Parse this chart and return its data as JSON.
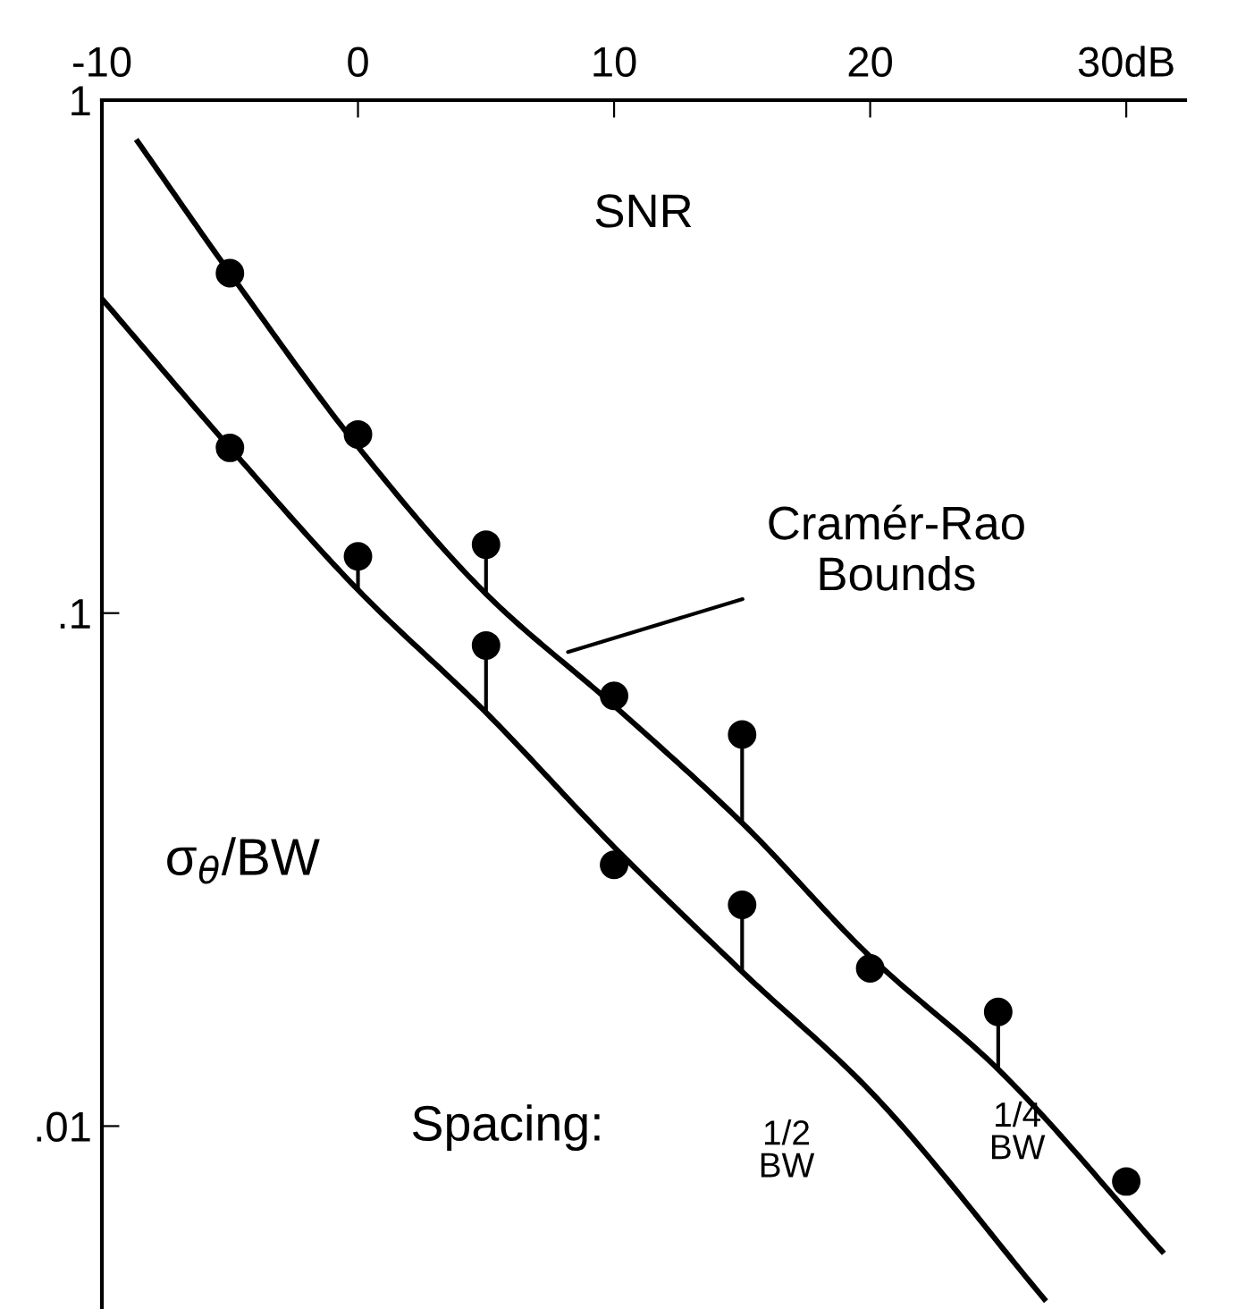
{
  "chart_data": {
    "type": "line",
    "xlabel": "SNR",
    "ylabel": "σ$_{θ}$/BW",
    "log": true,
    "xlim": [
      -10,
      32.3
    ],
    "ylim": [
      0.0044,
      1
    ],
    "xticks": [
      -10,
      0,
      10,
      20,
      {
        "value": 30,
        "label": "30dB"
      }
    ],
    "yticks": [
      {
        "value": 0.01,
        "label": ".01"
      },
      {
        "value": 0.1,
        "label": ".1"
      },
      1
    ],
    "annotations": [
      {
        "text": "Cramér-Rao\nBounds",
        "x": 8.2,
        "y": 0.084
      },
      "Spacing:"
    ],
    "series": [
      {
        "name": "1/2\nBW",
        "color": "#000000",
        "x": [
          -10,
          -5,
          0,
          5,
          10,
          15,
          20,
          26.8
        ],
        "values": [
          0.41,
          0.21,
          0.111,
          0.064,
          0.035,
          0.02,
          0.0117,
          0.0046
        ]
      },
      {
        "name": "1/4\nBW",
        "color": "#000000",
        "x": [
          -8.6,
          -5,
          0,
          5,
          10,
          15,
          20,
          25,
          31.4
        ],
        "values": [
          0.83,
          0.46,
          0.211,
          0.109,
          0.066,
          0.039,
          0.0214,
          0.0129,
          0.0057
        ]
      },
      {
        "type": "scatter",
        "marker": "circle",
        "color": "#000000",
        "x": [
          -5,
          0,
          5,
          10,
          15
        ],
        "values": [
          0.21,
          0.129,
          0.0865,
          0.0323,
          0.027
        ],
        "errors": [
          null,
          [
            0.111,
            0.129
          ],
          [
            0.064,
            0.0865
          ],
          null,
          [
            0.02,
            0.027
          ]
        ]
      },
      {
        "type": "scatter",
        "marker": "circle",
        "color": "#000000",
        "x": [
          -5,
          0,
          5,
          10,
          15,
          20,
          25,
          30
        ],
        "values": [
          0.46,
          0.223,
          0.136,
          0.069,
          0.058,
          0.0203,
          0.0167,
          0.0078
        ],
        "errors": [
          null,
          null,
          [
            0.109,
            0.136
          ],
          null,
          [
            0.039,
            0.058
          ],
          null,
          [
            0.0129,
            0.0167
          ],
          null
        ]
      }
    ]
  }
}
